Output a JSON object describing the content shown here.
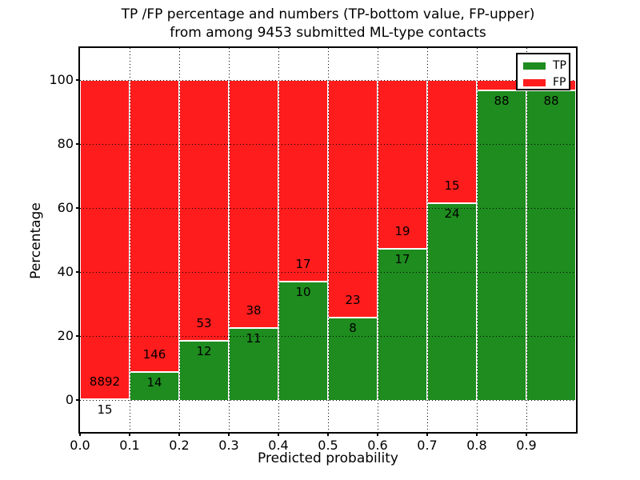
{
  "figure": {
    "title_line1": "TP /FP percentage and numbers (TP-bottom value, FP-upper)",
    "title_line2": "from among 9453 submitted ML-type contacts"
  },
  "chart_data": {
    "type": "bar",
    "stacked": true,
    "normalized_to_percent": true,
    "title": "TP /FP percentage and numbers (TP-bottom value, FP-upper) from among 9453 submitted ML-type contacts",
    "xlabel": "Predicted probability",
    "ylabel": "Percentage",
    "xlim": [
      0.0,
      1.0
    ],
    "ylim": [
      -10,
      110
    ],
    "x_tick_labels": [
      "0.0",
      "0.1",
      "0.2",
      "0.3",
      "0.4",
      "0.5",
      "0.6",
      "0.7",
      "0.8",
      "0.9"
    ],
    "x_tick_values": [
      0.0,
      0.1,
      0.2,
      0.3,
      0.4,
      0.5,
      0.6,
      0.7,
      0.8,
      0.9
    ],
    "y_tick_labels": [
      "0",
      "20",
      "40",
      "60",
      "80",
      "100"
    ],
    "y_tick_values": [
      0,
      20,
      40,
      60,
      80,
      100
    ],
    "grid_style": "dotted",
    "legend_position": "upper-right",
    "legend": [
      {
        "label": "TP",
        "color": "#1E8C1E"
      },
      {
        "label": "FP",
        "color": "#FF1C1C"
      }
    ],
    "colors": {
      "tp": "#1E8C1E",
      "fp": "#FF1C1C",
      "bar_edge": "#ffffff"
    },
    "bars": [
      {
        "x_start": 0.0,
        "x_end": 0.1,
        "tp_count": 15,
        "fp_count": 8892,
        "tp_pct": 0.17
      },
      {
        "x_start": 0.1,
        "x_end": 0.2,
        "tp_count": 14,
        "fp_count": 146,
        "tp_pct": 8.75
      },
      {
        "x_start": 0.2,
        "x_end": 0.3,
        "tp_count": 12,
        "fp_count": 53,
        "tp_pct": 18.46
      },
      {
        "x_start": 0.3,
        "x_end": 0.4,
        "tp_count": 11,
        "fp_count": 38,
        "tp_pct": 22.45
      },
      {
        "x_start": 0.4,
        "x_end": 0.5,
        "tp_count": 10,
        "fp_count": 17,
        "tp_pct": 37.04
      },
      {
        "x_start": 0.5,
        "x_end": 0.6,
        "tp_count": 8,
        "fp_count": 23,
        "tp_pct": 25.81
      },
      {
        "x_start": 0.6,
        "x_end": 0.7,
        "tp_count": 17,
        "fp_count": 19,
        "tp_pct": 47.22
      },
      {
        "x_start": 0.7,
        "x_end": 0.8,
        "tp_count": 24,
        "fp_count": 15,
        "tp_pct": 61.54
      },
      {
        "x_start": 0.8,
        "x_end": 0.9,
        "tp_count": 88,
        "fp_count": null,
        "tp_pct": 96.7
      }
    ],
    "bars_note_last": {
      "x_start": 0.9,
      "x_end": 1.0,
      "tp_count": 88,
      "fp_label_visible": false,
      "tp_pct": 96.7
    }
  }
}
